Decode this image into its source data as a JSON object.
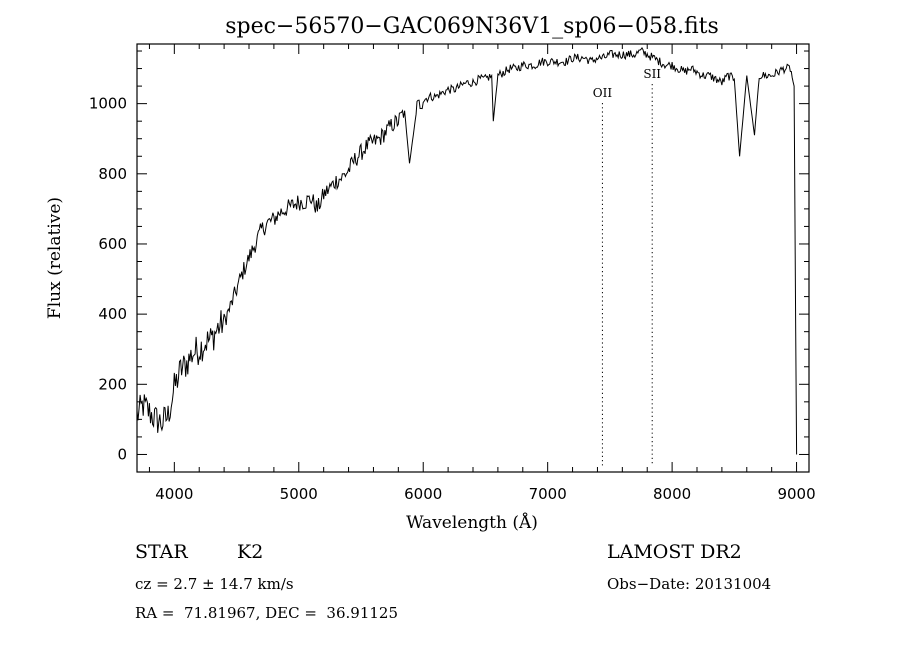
{
  "chart_data": {
    "type": "line",
    "title": "spec−56570−GAC069N36V1_sp06−058.fits",
    "xlabel": "Wavelength (Å)",
    "ylabel": "Flux (relative)",
    "xlim": [
      3700,
      9100
    ],
    "ylim": [
      -50,
      1170
    ],
    "x_ticks": [
      4000,
      5000,
      6000,
      7000,
      8000,
      9000
    ],
    "y_ticks": [
      0,
      200,
      400,
      600,
      800,
      1000
    ],
    "grid": false,
    "series": [
      {
        "x": [
          3700,
          3750,
          3800,
          3850,
          3900,
          3950,
          4000,
          4050,
          4100,
          4150,
          4200,
          4250,
          4300,
          4350,
          4400,
          4450,
          4500,
          4550,
          4600,
          4650,
          4700,
          4750,
          4800,
          4850,
          4900,
          4950,
          5000,
          5050,
          5100,
          5150,
          5200,
          5250,
          5300,
          5350,
          5400,
          5450,
          5500,
          5550,
          5600,
          5650,
          5700,
          5750,
          5800,
          5850,
          5890,
          5950,
          6000,
          6050,
          6100,
          6150,
          6200,
          6250,
          6300,
          6350,
          6400,
          6450,
          6500,
          6550,
          6563,
          6600,
          6650,
          6700,
          6750,
          6800,
          6850,
          6900,
          6950,
          7000,
          7050,
          7100,
          7150,
          7200,
          7250,
          7300,
          7350,
          7400,
          7450,
          7500,
          7550,
          7600,
          7650,
          7700,
          7750,
          7800,
          7850,
          7900,
          7950,
          8000,
          8050,
          8100,
          8150,
          8200,
          8250,
          8300,
          8350,
          8400,
          8450,
          8500,
          8542,
          8600,
          8662,
          8700,
          8750,
          8800,
          8850,
          8900,
          8950,
          8980,
          9000
        ],
        "y": [
          110,
          140,
          120,
          100,
          90,
          110,
          190,
          240,
          260,
          290,
          300,
          320,
          330,
          360,
          380,
          420,
          470,
          520,
          560,
          600,
          640,
          660,
          670,
          690,
          700,
          710,
          720,
          720,
          730,
          700,
          740,
          760,
          780,
          790,
          810,
          840,
          860,
          880,
          890,
          900,
          920,
          940,
          950,
          980,
          830,
          990,
          1010,
          1020,
          1020,
          1030,
          1040,
          1040,
          1050,
          1060,
          1060,
          1070,
          1070,
          1080,
          950,
          1080,
          1090,
          1100,
          1100,
          1110,
          1110,
          1110,
          1120,
          1120,
          1120,
          1120,
          1120,
          1130,
          1130,
          1130,
          1120,
          1130,
          1130,
          1140,
          1140,
          1140,
          1140,
          1140,
          1150,
          1140,
          1130,
          1120,
          1110,
          1110,
          1100,
          1090,
          1100,
          1090,
          1080,
          1080,
          1070,
          1060,
          1080,
          1070,
          850,
          1080,
          910,
          1080,
          1080,
          1080,
          1090,
          1100,
          1100,
          1050,
          0
        ]
      }
    ],
    "line_annotations": [
      {
        "label": "OII",
        "x": 7440
      },
      {
        "label": "SII",
        "x": 7840
      }
    ]
  },
  "info": {
    "class": "STAR",
    "subclass": "K2",
    "survey": "LAMOST DR2",
    "cz": "cz = 2.7 ± 14.7 km/s",
    "obs_date": "Obs−Date: 20131004",
    "coords": "RA =  71.81967, DEC =  36.91125"
  }
}
